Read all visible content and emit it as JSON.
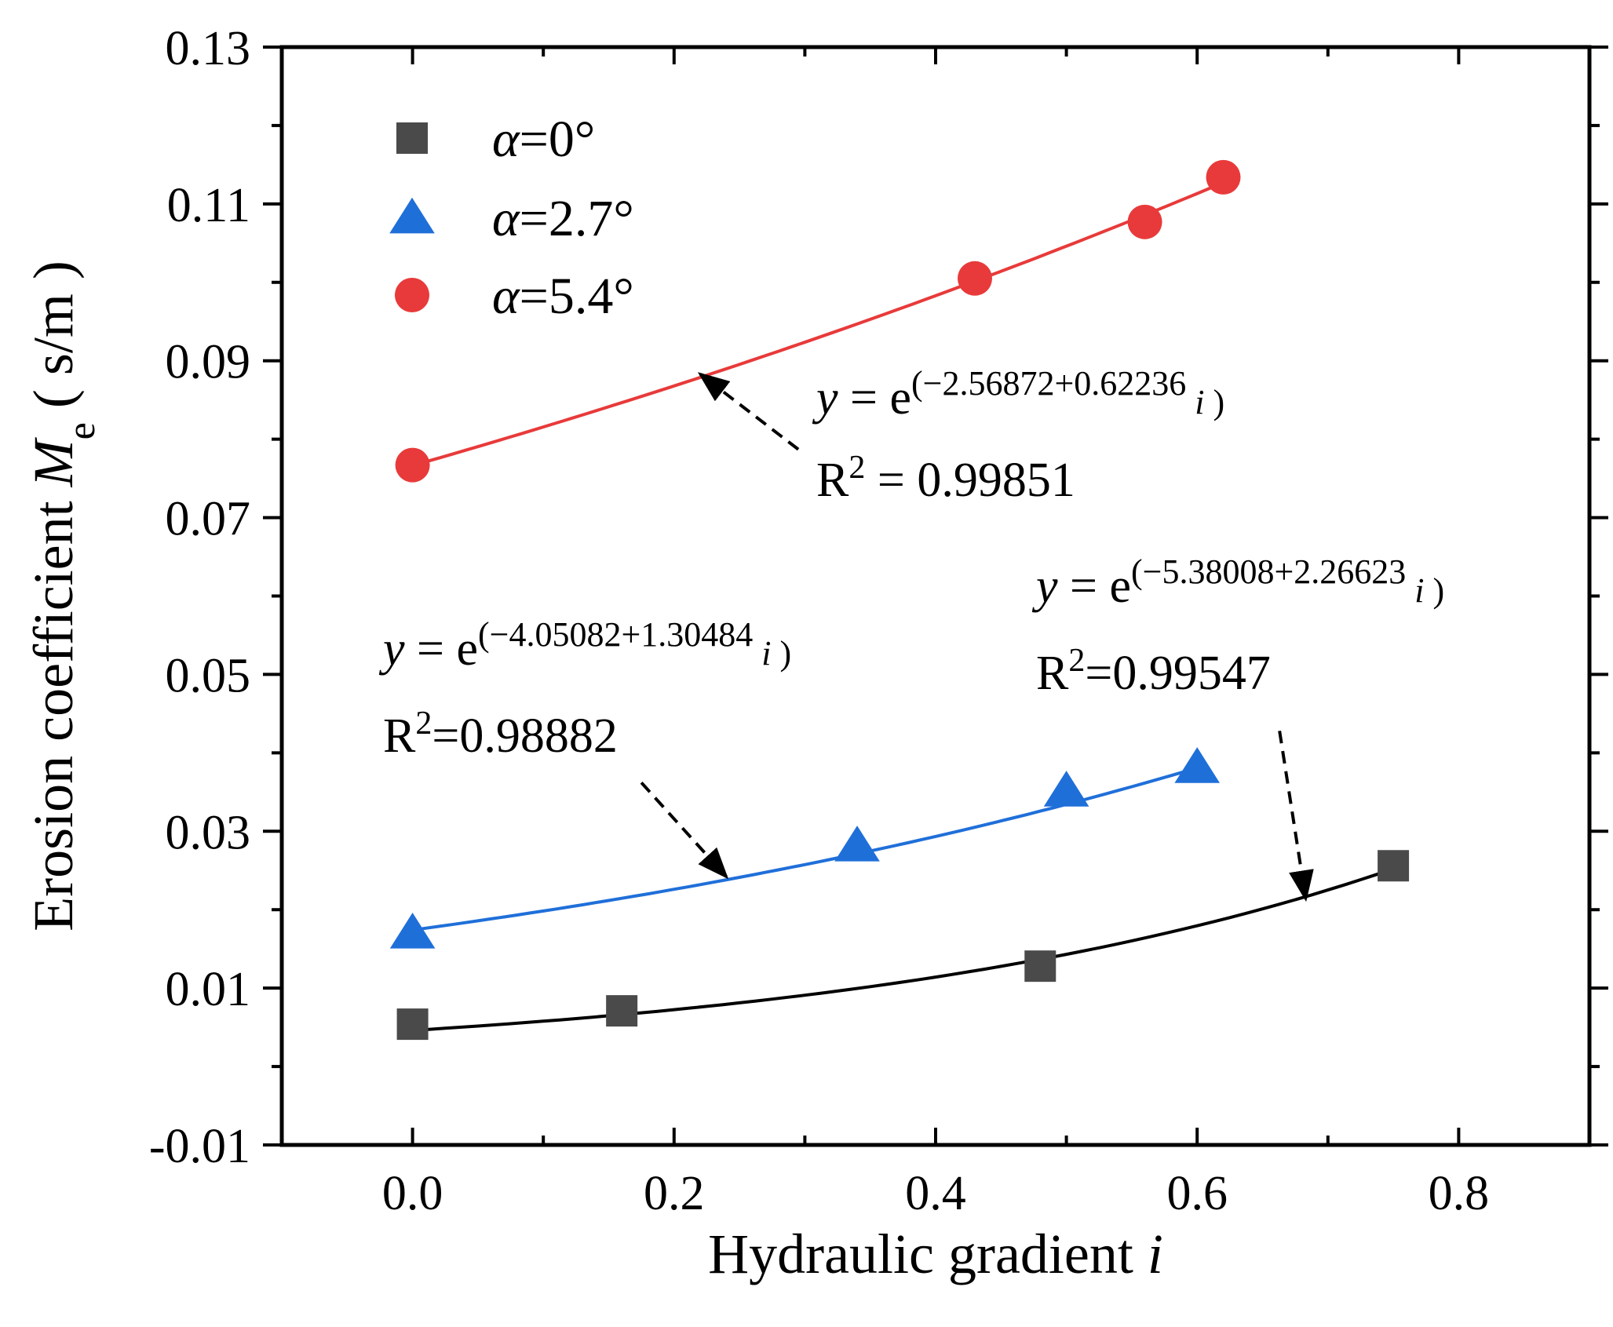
{
  "chart_data": {
    "type": "scatter",
    "xlabel": "Hydraulic gradient",
    "xlabel_var": "i",
    "ylabel": "Erosion coefficient",
    "ylabel_var": "M",
    "ylabel_sub": "e",
    "ylabel_unit": "( s/m )",
    "xlim": [
      -0.1,
      0.9
    ],
    "ylim": [
      -0.01,
      0.13
    ],
    "x_ticks": [
      0.0,
      0.2,
      0.4,
      0.6,
      0.8
    ],
    "x_tick_labels": [
      "0.0",
      "0.2",
      "0.4",
      "0.6",
      "0.8"
    ],
    "x_minor_ticks": [
      0.1,
      0.3,
      0.5,
      0.7
    ],
    "y_ticks": [
      -0.01,
      0.01,
      0.03,
      0.05,
      0.07,
      0.09,
      0.11,
      0.13
    ],
    "y_tick_labels": [
      "-0.01",
      "0.01",
      "0.03",
      "0.05",
      "0.07",
      "0.09",
      "0.11",
      "0.13"
    ],
    "y_minor_ticks": [
      0.0,
      0.02,
      0.04,
      0.06,
      0.08,
      0.1,
      0.12
    ],
    "legend_position": "top-left",
    "series": [
      {
        "name": "α=0°",
        "legend_var": "α",
        "legend_value": "=0°",
        "marker": "square",
        "color": "#4a4a4a",
        "line_color": "#000000",
        "x": [
          0.0,
          0.16,
          0.48,
          0.75
        ],
        "y": [
          0.0054,
          0.0071,
          0.0128,
          0.0256
        ],
        "fit": {
          "a": -5.38008,
          "b": 2.26623,
          "x_range": [
            0.0,
            0.75
          ]
        }
      },
      {
        "name": "α=2.7°",
        "legend_var": "α",
        "legend_value": "=2.7°",
        "marker": "triangle",
        "color": "#1f6fd9",
        "line_color": "#1f6fd9",
        "x": [
          0.0,
          0.34,
          0.5,
          0.6
        ],
        "y": [
          0.0171,
          0.0282,
          0.0352,
          0.0382
        ],
        "fit": {
          "a": -4.05082,
          "b": 1.30484,
          "x_range": [
            0.0,
            0.6
          ]
        }
      },
      {
        "name": "α=5.4°",
        "legend_var": "α",
        "legend_value": "=5.4°",
        "marker": "circle",
        "color": "#e83a3a",
        "line_color": "#e83a3a",
        "x": [
          0.0,
          0.43,
          0.56,
          0.62
        ],
        "y": [
          0.0767,
          0.1005,
          0.1077,
          0.1134
        ],
        "fit": {
          "a": -2.56872,
          "b": 0.62236,
          "x_range": [
            0.0,
            0.62
          ]
        }
      }
    ],
    "annotations": [
      {
        "series": "α=5.4°",
        "equation_prefix": "y",
        "equation_eq": " = e",
        "equation_exp": "(−2.56872+0.62236 ",
        "equation_var": "i",
        "equation_close": " )",
        "r2_label": "R",
        "r2_sup": "2",
        "r2_value": " = 0.99851",
        "arrow_from": [
          0.295,
          0.0787
        ],
        "arrow_to": [
          0.22,
          0.0883
        ]
      },
      {
        "series": "α=2.7°",
        "equation_prefix": "y",
        "equation_eq": " = e",
        "equation_exp": "(−4.05082+1.30484 ",
        "equation_var": "i",
        "equation_close": " )",
        "r2_label": "R",
        "r2_sup": "2",
        "r2_value": "=0.98882",
        "arrow_from": [
          0.175,
          0.0362
        ],
        "arrow_to": [
          0.24,
          0.0242
        ]
      },
      {
        "series": "α=0°",
        "equation_prefix": "y",
        "equation_eq": " = e",
        "equation_exp": "(−5.38008+2.26623 ",
        "equation_var": "i",
        "equation_close": " )",
        "r2_label": "R",
        "r2_sup": "2",
        "r2_value": "=0.99547",
        "arrow_from": [
          0.663,
          0.0428
        ],
        "arrow_to": [
          0.683,
          0.0214
        ]
      }
    ]
  }
}
